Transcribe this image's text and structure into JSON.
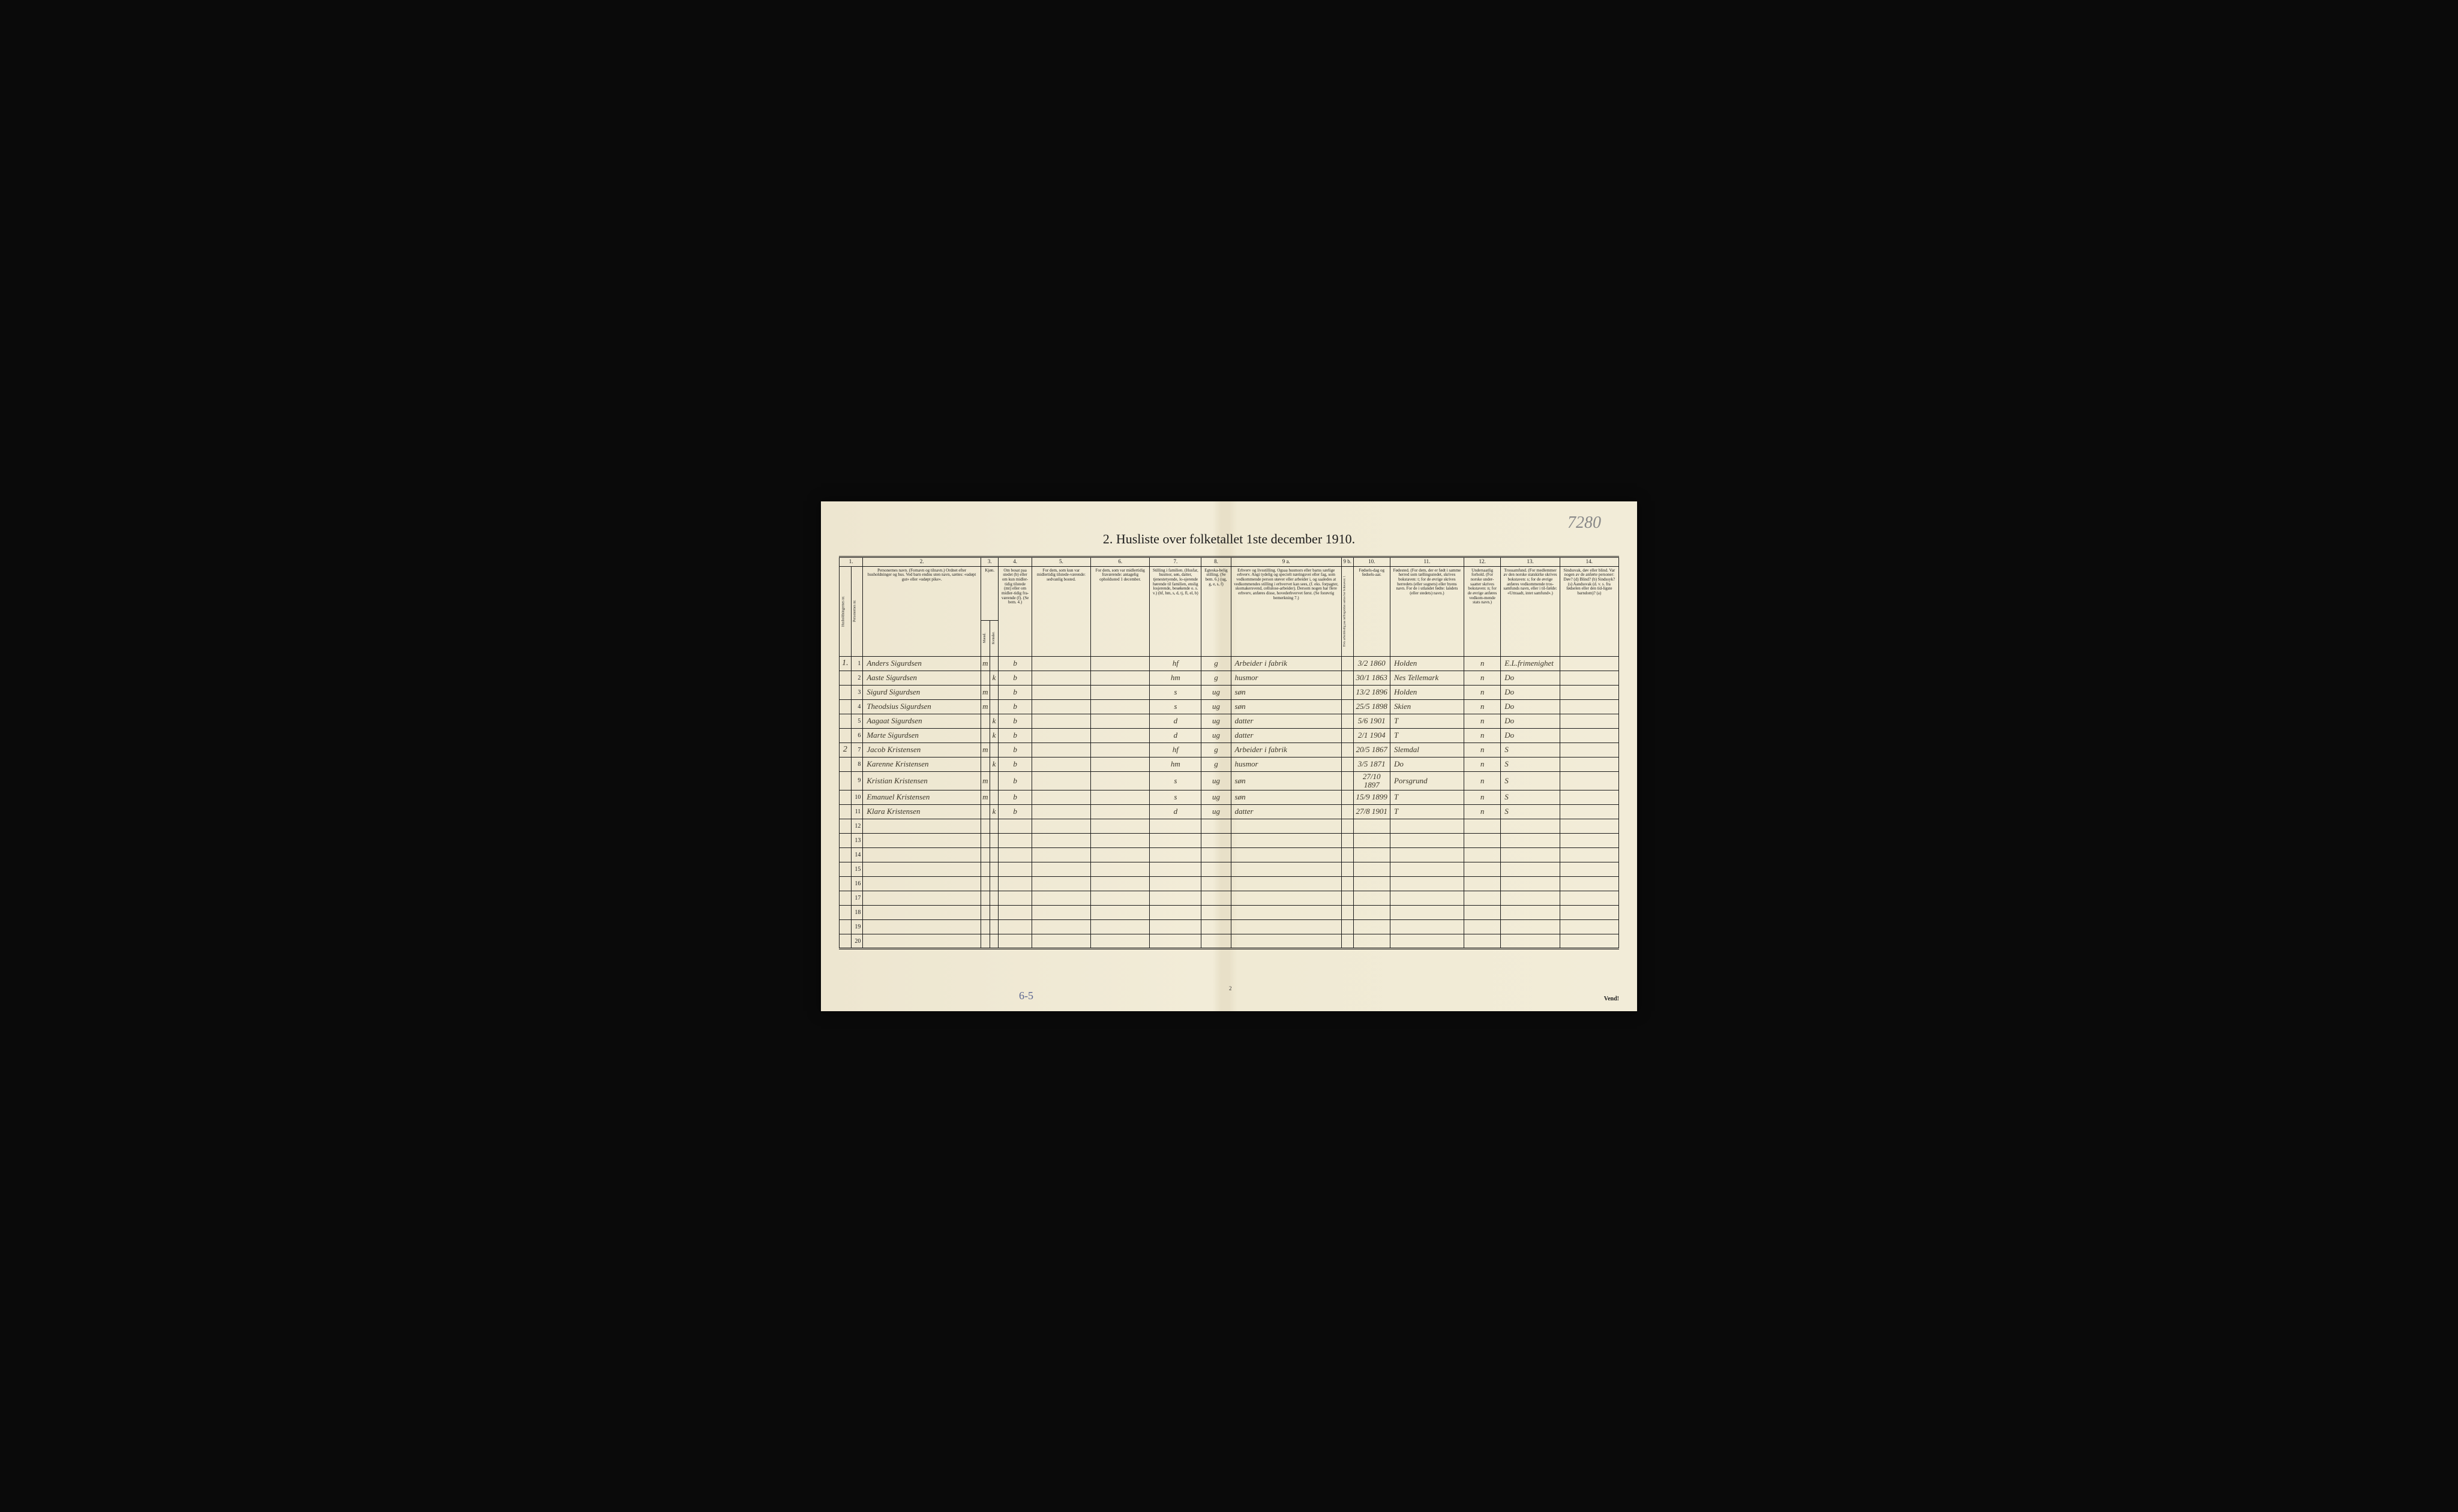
{
  "document": {
    "title": "2.  Husliste over folketallet 1ste december 1910.",
    "top_annotation": "7280",
    "bottom_left_annotation": "6-5",
    "bottom_center": "2",
    "bottom_right": "Vend!",
    "colors": {
      "paper": "#f0ead6",
      "ink": "#1a1a1a",
      "handwriting": "#3a3528",
      "pencil": "#888888",
      "blue_pencil": "#5a6590"
    }
  },
  "column_numbers": [
    "1.",
    "2.",
    "3.",
    "4.",
    "5.",
    "6.",
    "7.",
    "8.",
    "9 a.",
    "9 b.",
    "10.",
    "11.",
    "12.",
    "13.",
    "14."
  ],
  "headers": {
    "col1a": "Husholdningernes nr.",
    "col1b": "Personernes nr.",
    "col2": "Personernes navn.\n(Fornavn og tilnavn.)\nOrdnet efter husholdninger og hus.\nVed barn endnu uten navn, sættes: «udøpt gut» eller «udøpt pike».",
    "col3": "Kjøn.",
    "col3a": "Mænd.",
    "col3b": "Kvinder.",
    "col3sub": "m. k.",
    "col4": "Om bosat paa stedet (b) eller om kun midler-tidig tilstede (mt) eller om midler-tidig fra-værende (f). (Se bem. 4.)",
    "col5": "For dem, som kun var midlertidig tilstede-værende:\nsedvanlig bosted.",
    "col6": "For dem, som var midlertidig fraværende:\nantagelig opholdssted 1 december.",
    "col7": "Stilling i familien.\n(Husfar, husmor, søn, datter, tjenestetyende, lo-sjerende hørende til familien, enslig losjerende, besøkende o. s. v.)\n(hf, hm, s, d, tj, fl, el, b)",
    "col8": "Egteska-belig stilling.\n(Se bem. 6.)\n(ug, g, e, s, f)",
    "col9a": "Erhverv og livsstilling.\nOgsaa husmors eller barns særlige erhverv.\nAngi tydelig og specielt næringsvei eller fag, som vedkommende person utøver eller arbeider i, og saaledes at vedkommendes stilling i erhvervet kan sees, (f. eks. forpagter, skomakersvend, cellulose-arbeider). Dersom nogen har flere erhverv, anføres disse, hovederhvervet først.\n(Se forøvrig bemerkning 7.)",
    "col9b": "Hvis arbeidsledig paa tællingstiden sættes her bokstaven: l.",
    "col10": "Fødsels-dag og fødsels-aar.",
    "col11": "Fødested.\n(For dem, der er født i samme herred som tællingsstedet, skrives bokstaven: t; for de øvrige skrives herredets (eller sognets) eller byens navn. For de i utlandet fødte: landets (eller stedets) navn.)",
    "col12": "Undersaatlig forhold.\n(For norske under-saatter skrives bokstaven: n; for de øvrige anføres vedkom-mende stats navn.)",
    "col13": "Trossamfund.\n(For medlemmer av den norske statskirke skrives bokstaven: s; for de øvrige anføres vedkommende tros-samfunds navn, eller i til-fælde: «Uttraadt, intet samfund».)",
    "col14": "Sindssvak, døv eller blind.\nVar nogen av de anførte personer:\nDøv? (d)\nBlind? (b)\nSindssyk? (s)\nAandssvak (d. v. s. fra fødselen eller den tid-ligste barndom)? (a)"
  },
  "rows": [
    {
      "house": "1.",
      "n": "1",
      "name": "Anders Sigurdsen",
      "sex_m": "m",
      "sex_k": "",
      "status": "b",
      "col5": "",
      "col6": "",
      "family": "hf",
      "marital": "g",
      "occupation": "Arbeider i fabrik",
      "col9b": "",
      "birth": "3/2 1860",
      "birthplace": "Holden",
      "nat": "n",
      "religion": "E.L.frimenighet",
      "col14": ""
    },
    {
      "house": "",
      "n": "2",
      "name": "Aaste Sigurdsen",
      "sex_m": "",
      "sex_k": "k",
      "status": "b",
      "col5": "",
      "col6": "",
      "family": "hm",
      "marital": "g",
      "occupation": "husmor",
      "col9b": "",
      "birth": "30/1 1863",
      "birthplace": "Nes Tellemark",
      "nat": "n",
      "religion": "Do",
      "col14": ""
    },
    {
      "house": "",
      "n": "3",
      "name": "Sigurd Sigurdsen",
      "sex_m": "m",
      "sex_k": "",
      "status": "b",
      "col5": "",
      "col6": "",
      "family": "s",
      "marital": "ug",
      "occupation": "søn",
      "col9b": "",
      "birth": "13/2 1896",
      "birthplace": "Holden",
      "nat": "n",
      "religion": "Do",
      "col14": ""
    },
    {
      "house": "",
      "n": "4",
      "name": "Theodsius Sigurdsen",
      "sex_m": "m",
      "sex_k": "",
      "status": "b",
      "col5": "",
      "col6": "",
      "family": "s",
      "marital": "ug",
      "occupation": "søn",
      "col9b": "",
      "birth": "25/5 1898",
      "birthplace": "Skien",
      "nat": "n",
      "religion": "Do",
      "col14": ""
    },
    {
      "house": "",
      "n": "5",
      "name": "Aagaat Sigurdsen",
      "sex_m": "",
      "sex_k": "k",
      "status": "b",
      "col5": "",
      "col6": "",
      "family": "d",
      "marital": "ug",
      "occupation": "datter",
      "col9b": "",
      "birth": "5/6 1901",
      "birthplace": "T",
      "nat": "n",
      "religion": "Do",
      "col14": ""
    },
    {
      "house": "",
      "n": "6",
      "name": "Marte Sigurdsen",
      "sex_m": "",
      "sex_k": "k",
      "status": "b",
      "col5": "",
      "col6": "",
      "family": "d",
      "marital": "ug",
      "occupation": "datter",
      "col9b": "",
      "birth": "2/1 1904",
      "birthplace": "T",
      "nat": "n",
      "religion": "Do",
      "col14": ""
    },
    {
      "house": "2",
      "n": "7",
      "name": "Jacob Kristensen",
      "sex_m": "m",
      "sex_k": "",
      "status": "b",
      "col5": "",
      "col6": "",
      "family": "hf",
      "marital": "g",
      "occupation": "Arbeider i fabrik",
      "col9b": "",
      "birth": "20/5 1867",
      "birthplace": "Slemdal",
      "nat": "n",
      "religion": "S",
      "col14": ""
    },
    {
      "house": "",
      "n": "8",
      "name": "Karenne Kristensen",
      "sex_m": "",
      "sex_k": "k",
      "status": "b",
      "col5": "",
      "col6": "",
      "family": "hm",
      "marital": "g",
      "occupation": "husmor",
      "col9b": "",
      "birth": "3/5 1871",
      "birthplace": "Do",
      "nat": "n",
      "religion": "S",
      "col14": ""
    },
    {
      "house": "",
      "n": "9",
      "name": "Kristian Kristensen",
      "sex_m": "m",
      "sex_k": "",
      "status": "b",
      "col5": "",
      "col6": "",
      "family": "s",
      "marital": "ug",
      "occupation": "søn",
      "col9b": "",
      "birth": "27/10 1897",
      "birthplace": "Porsgrund",
      "nat": "n",
      "religion": "S",
      "col14": ""
    },
    {
      "house": "",
      "n": "10",
      "name": "Emanuel Kristensen",
      "sex_m": "m",
      "sex_k": "",
      "status": "b",
      "col5": "",
      "col6": "",
      "family": "s",
      "marital": "ug",
      "occupation": "søn",
      "col9b": "",
      "birth": "15/9 1899",
      "birthplace": "T",
      "nat": "n",
      "religion": "S",
      "col14": ""
    },
    {
      "house": "",
      "n": "11",
      "name": "Klara Kristensen",
      "sex_m": "",
      "sex_k": "k",
      "status": "b",
      "col5": "",
      "col6": "",
      "family": "d",
      "marital": "ug",
      "occupation": "datter",
      "col9b": "",
      "birth": "27/8 1901",
      "birthplace": "T",
      "nat": "n",
      "religion": "S",
      "col14": ""
    },
    {
      "house": "",
      "n": "12",
      "name": "",
      "sex_m": "",
      "sex_k": "",
      "status": "",
      "col5": "",
      "col6": "",
      "family": "",
      "marital": "",
      "occupation": "",
      "col9b": "",
      "birth": "",
      "birthplace": "",
      "nat": "",
      "religion": "",
      "col14": ""
    },
    {
      "house": "",
      "n": "13",
      "name": "",
      "sex_m": "",
      "sex_k": "",
      "status": "",
      "col5": "",
      "col6": "",
      "family": "",
      "marital": "",
      "occupation": "",
      "col9b": "",
      "birth": "",
      "birthplace": "",
      "nat": "",
      "religion": "",
      "col14": ""
    },
    {
      "house": "",
      "n": "14",
      "name": "",
      "sex_m": "",
      "sex_k": "",
      "status": "",
      "col5": "",
      "col6": "",
      "family": "",
      "marital": "",
      "occupation": "",
      "col9b": "",
      "birth": "",
      "birthplace": "",
      "nat": "",
      "religion": "",
      "col14": ""
    },
    {
      "house": "",
      "n": "15",
      "name": "",
      "sex_m": "",
      "sex_k": "",
      "status": "",
      "col5": "",
      "col6": "",
      "family": "",
      "marital": "",
      "occupation": "",
      "col9b": "",
      "birth": "",
      "birthplace": "",
      "nat": "",
      "religion": "",
      "col14": ""
    },
    {
      "house": "",
      "n": "16",
      "name": "",
      "sex_m": "",
      "sex_k": "",
      "status": "",
      "col5": "",
      "col6": "",
      "family": "",
      "marital": "",
      "occupation": "",
      "col9b": "",
      "birth": "",
      "birthplace": "",
      "nat": "",
      "religion": "",
      "col14": ""
    },
    {
      "house": "",
      "n": "17",
      "name": "",
      "sex_m": "",
      "sex_k": "",
      "status": "",
      "col5": "",
      "col6": "",
      "family": "",
      "marital": "",
      "occupation": "",
      "col9b": "",
      "birth": "",
      "birthplace": "",
      "nat": "",
      "religion": "",
      "col14": ""
    },
    {
      "house": "",
      "n": "18",
      "name": "",
      "sex_m": "",
      "sex_k": "",
      "status": "",
      "col5": "",
      "col6": "",
      "family": "",
      "marital": "",
      "occupation": "",
      "col9b": "",
      "birth": "",
      "birthplace": "",
      "nat": "",
      "religion": "",
      "col14": ""
    },
    {
      "house": "",
      "n": "19",
      "name": "",
      "sex_m": "",
      "sex_k": "",
      "status": "",
      "col5": "",
      "col6": "",
      "family": "",
      "marital": "",
      "occupation": "",
      "col9b": "",
      "birth": "",
      "birthplace": "",
      "nat": "",
      "religion": "",
      "col14": ""
    },
    {
      "house": "",
      "n": "20",
      "name": "",
      "sex_m": "",
      "sex_k": "",
      "status": "",
      "col5": "",
      "col6": "",
      "family": "",
      "marital": "",
      "occupation": "",
      "col9b": "",
      "birth": "",
      "birthplace": "",
      "nat": "",
      "religion": "",
      "col14": ""
    }
  ],
  "col_widths_pct": [
    1.6,
    1.6,
    16,
    1.2,
    1.2,
    4.5,
    8,
    8,
    7,
    4,
    15,
    1.6,
    5,
    10,
    5,
    8,
    8
  ]
}
